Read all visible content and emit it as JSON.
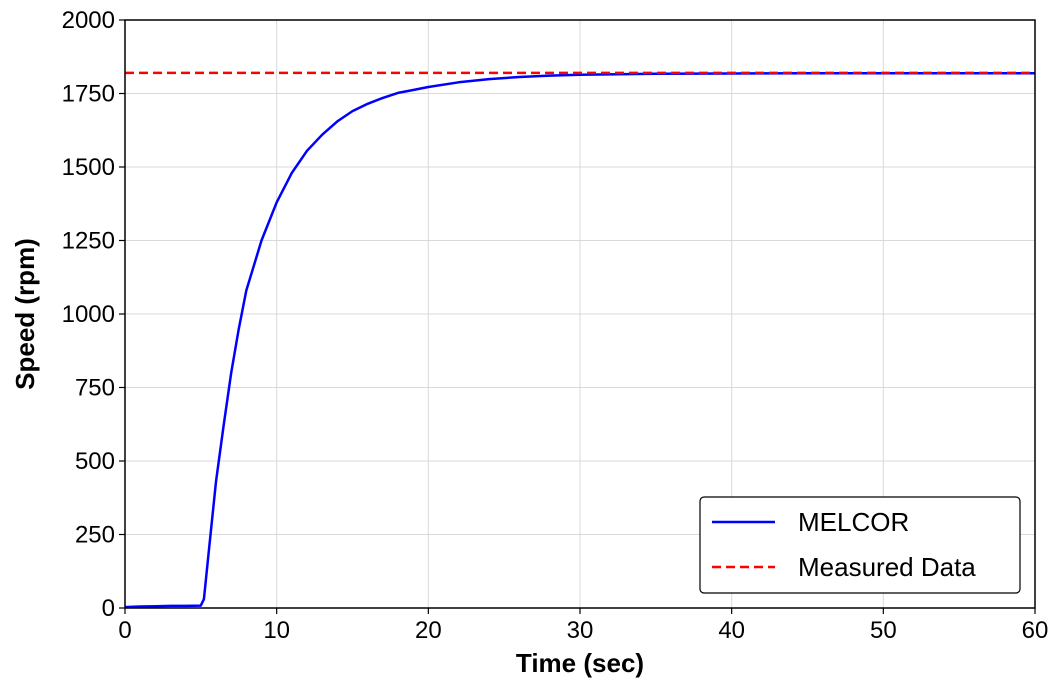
{
  "chart_data": {
    "type": "line",
    "title": "",
    "xlabel": "Time (sec)",
    "ylabel": "Speed (rpm)",
    "xlim": [
      0,
      60
    ],
    "ylim": [
      0,
      2000
    ],
    "x_ticks": [
      "0",
      "10",
      "20",
      "30",
      "40",
      "50",
      "60"
    ],
    "y_ticks": [
      "0",
      "250",
      "500",
      "750",
      "1000",
      "1250",
      "1500",
      "1750",
      "2000"
    ],
    "grid": true,
    "legend_position": "lower-right",
    "series": [
      {
        "name": "MELCOR",
        "color": "#0000ff",
        "style": "solid",
        "x": [
          0,
          1,
          2,
          3,
          4,
          5,
          5.2,
          5.5,
          6,
          6.5,
          7,
          7.5,
          8,
          9,
          10,
          11,
          12,
          13,
          14,
          15,
          16,
          17,
          18,
          19,
          20,
          22,
          24,
          26,
          28,
          30,
          35,
          40,
          45,
          50,
          55,
          60
        ],
        "y": [
          3,
          5,
          6,
          7,
          7,
          8,
          30,
          180,
          430,
          620,
          800,
          950,
          1080,
          1250,
          1380,
          1480,
          1555,
          1610,
          1655,
          1690,
          1715,
          1735,
          1752,
          1762,
          1772,
          1788,
          1799,
          1806,
          1811,
          1814,
          1817,
          1818,
          1819,
          1819,
          1819,
          1819
        ]
      },
      {
        "name": "Measured Data",
        "color": "#ff0000",
        "style": "dashed",
        "x": [
          0,
          60
        ],
        "y": [
          1820,
          1820
        ]
      }
    ]
  }
}
